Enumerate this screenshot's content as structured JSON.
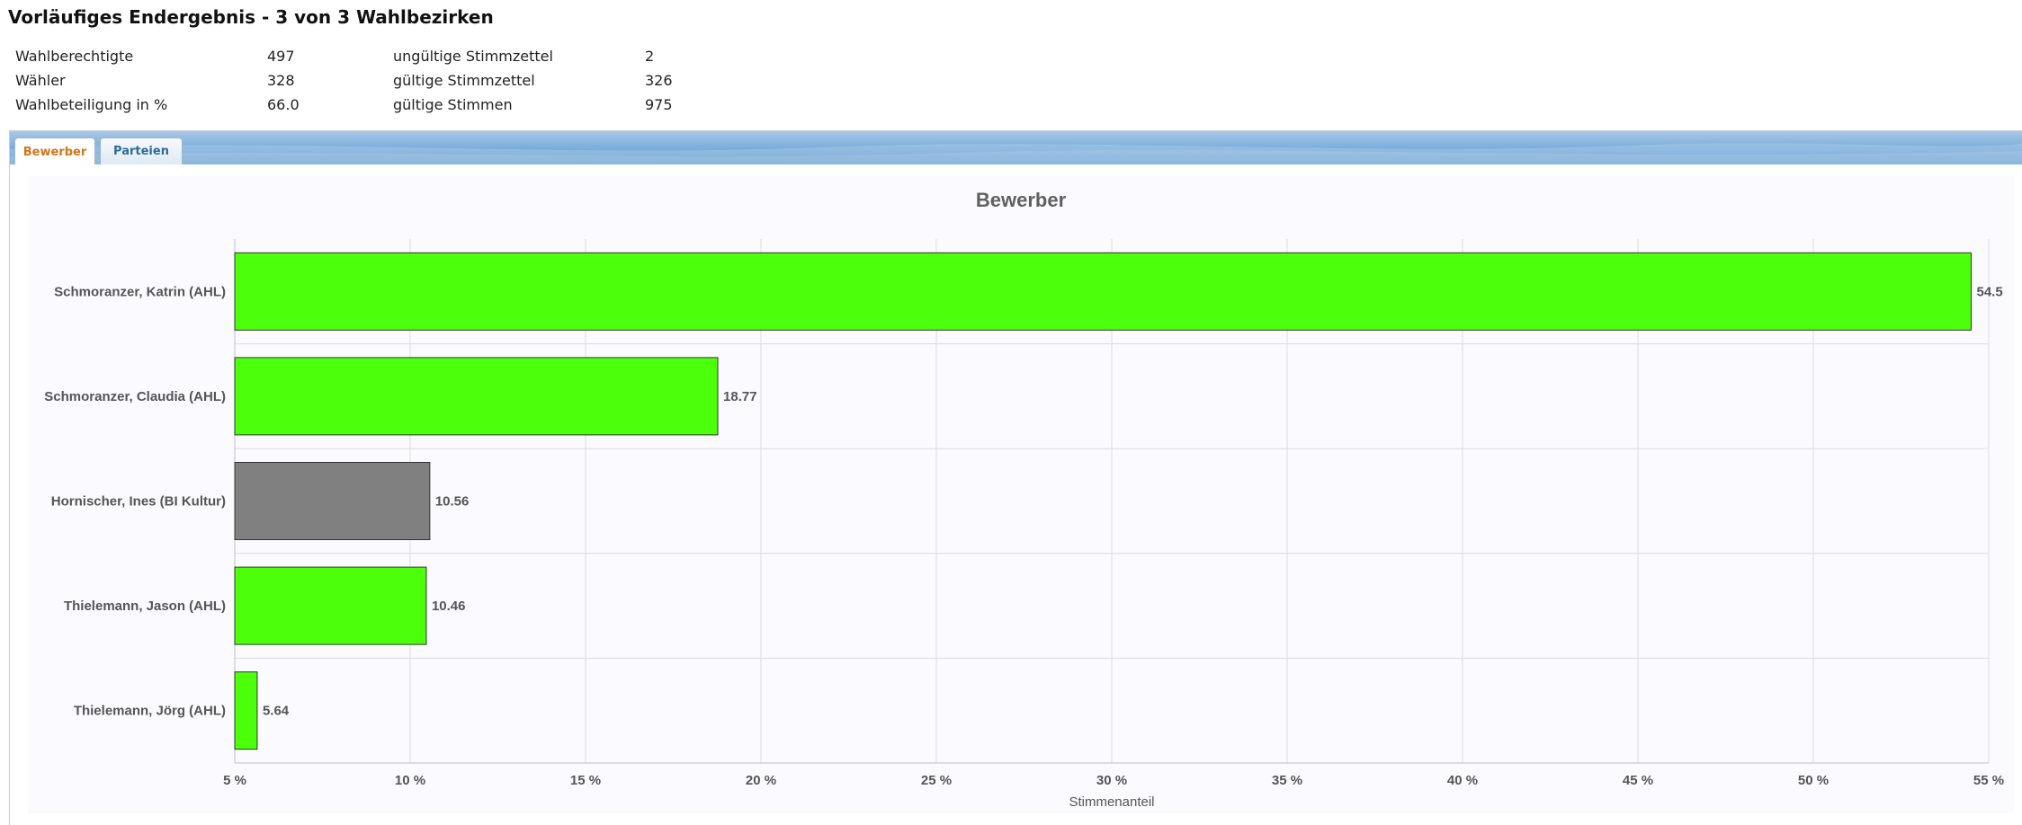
{
  "header": {
    "title": "Vorläufiges Endergebnis - 3 von 3 Wahlbezirken"
  },
  "stats": [
    {
      "label": "Wahlberechtigte",
      "value": "497",
      "label2": "ungültige Stimmzettel",
      "value2": "2"
    },
    {
      "label": "Wähler",
      "value": "328",
      "label2": "gültige Stimmzettel",
      "value2": "326"
    },
    {
      "label": "Wahlbeteiligung in %",
      "value": "66.0",
      "label2": "gültige Stimmen",
      "value2": "975"
    }
  ],
  "tabs": [
    {
      "label": "Bewerber",
      "active": true
    },
    {
      "label": "Parteien",
      "active": false
    }
  ],
  "colors": {
    "green": "#4cff0a",
    "gray": "#808080",
    "tab_active_text": "#d2761b",
    "tab_inactive_text": "#2f6b9a"
  },
  "chart_data": {
    "type": "bar",
    "orientation": "horizontal",
    "title": "Bewerber",
    "xlabel": "Stimmenanteil",
    "ylabel": "",
    "xlim": [
      5,
      55
    ],
    "ticks": [
      5,
      10,
      15,
      20,
      25,
      30,
      35,
      40,
      45,
      50,
      55
    ],
    "tick_labels": [
      "5 %",
      "10 %",
      "15 %",
      "20 %",
      "25 %",
      "30 %",
      "35 %",
      "40 %",
      "45 %",
      "50 %",
      "55 %"
    ],
    "grid": true,
    "categories": [
      "Schmoranzer, Katrin (AHL)",
      "Schmoranzer, Claudia (AHL)",
      "Hornischer, Ines (BI Kultur)",
      "Thielemann, Jason (AHL)",
      "Thielemann, Jörg (AHL)"
    ],
    "values": [
      54.5,
      18.77,
      10.56,
      10.46,
      5.64
    ],
    "value_labels": [
      "54.5",
      "18.77",
      "10.56",
      "10.46",
      "5.64"
    ],
    "bar_colors": [
      "#4cff0a",
      "#4cff0a",
      "#808080",
      "#4cff0a",
      "#4cff0a"
    ]
  }
}
